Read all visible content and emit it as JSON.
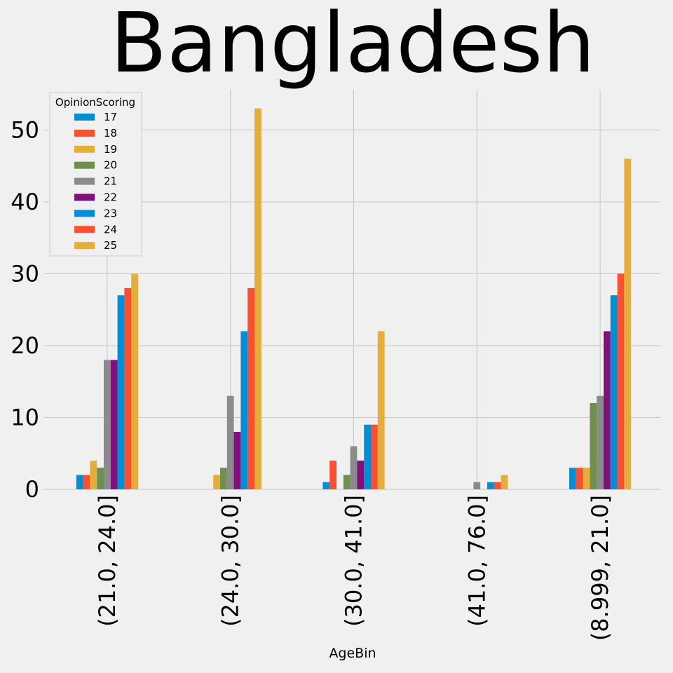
{
  "chart_data": {
    "type": "bar",
    "title": "Bangladesh",
    "xlabel": "AgeBin",
    "ylabel": "",
    "ylim": [
      0,
      55.6
    ],
    "yticks": [
      0,
      10,
      20,
      30,
      40,
      50
    ],
    "categories": [
      "(21.0, 24.0]",
      "(24.0, 30.0]",
      "(30.0, 41.0]",
      "(41.0, 76.0]",
      "(8.999, 21.0]"
    ],
    "legend_title": "OpinionScoring",
    "legend_position": "top-left",
    "grid": true,
    "series": [
      {
        "name": "17",
        "color": "#008fd5",
        "values": [
          2,
          0,
          1,
          0,
          3
        ]
      },
      {
        "name": "18",
        "color": "#fc4f30",
        "values": [
          2,
          0,
          4,
          0,
          3
        ]
      },
      {
        "name": "19",
        "color": "#e5ae38",
        "values": [
          4,
          2,
          0,
          0,
          3
        ]
      },
      {
        "name": "20",
        "color": "#6d904f",
        "values": [
          3,
          3,
          2,
          0,
          12
        ]
      },
      {
        "name": "21",
        "color": "#8b8b8b",
        "values": [
          18,
          13,
          6,
          1,
          13
        ]
      },
      {
        "name": "22",
        "color": "#810f7c",
        "values": [
          18,
          8,
          4,
          0,
          22
        ]
      },
      {
        "name": "23",
        "color": "#008fd5",
        "values": [
          27,
          22,
          9,
          1,
          27
        ]
      },
      {
        "name": "24",
        "color": "#fc4f30",
        "values": [
          28,
          28,
          9,
          1,
          30
        ]
      },
      {
        "name": "25",
        "color": "#e5ae38",
        "values": [
          30,
          53,
          22,
          2,
          46
        ]
      }
    ]
  }
}
